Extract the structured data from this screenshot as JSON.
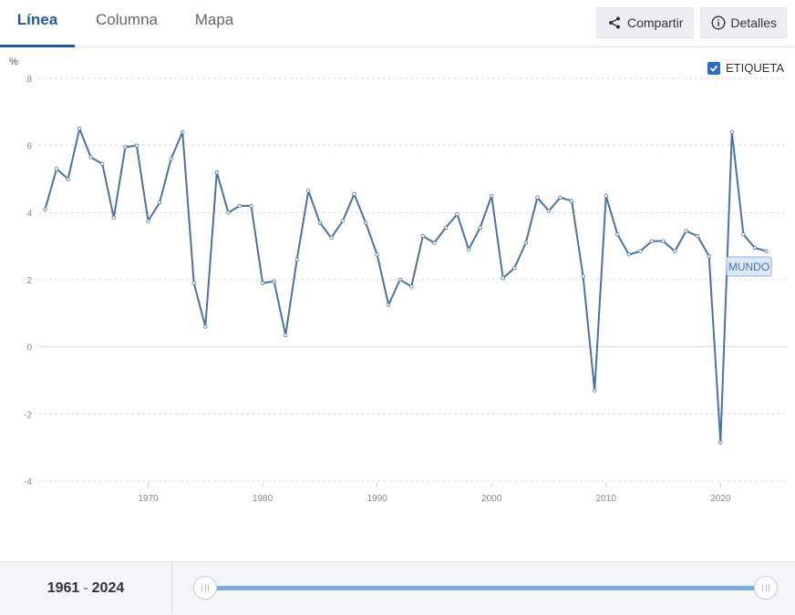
{
  "tabs": [
    {
      "label": "Línea",
      "active": true
    },
    {
      "label": "Columna",
      "active": false
    },
    {
      "label": "Mapa",
      "active": false
    }
  ],
  "actions": {
    "share_label": "Compartir",
    "details_label": "Detalles"
  },
  "legend_toggle": {
    "label": "ETIQUETA",
    "checked": true
  },
  "range": {
    "start": "1961",
    "end": "2024",
    "separator": "-"
  },
  "colors": {
    "line": "#4a72a6",
    "accent": "#1f5aa6",
    "slider": "#7aaee0"
  },
  "chart_data": {
    "type": "line",
    "ylabel": "%",
    "ylim": [
      -4,
      8
    ],
    "yticks": [
      8,
      6,
      4,
      2,
      0,
      -2,
      -4
    ],
    "xticks": [
      1970,
      1980,
      1990,
      2000,
      2010,
      2020
    ],
    "xlim": [
      1960,
      2025
    ],
    "grid": true,
    "series": [
      {
        "name": "MUNDO",
        "x": [
          1961,
          1962,
          1963,
          1964,
          1965,
          1966,
          1967,
          1968,
          1969,
          1970,
          1971,
          1972,
          1973,
          1974,
          1975,
          1976,
          1977,
          1978,
          1979,
          1980,
          1981,
          1982,
          1983,
          1984,
          1985,
          1986,
          1987,
          1988,
          1989,
          1990,
          1991,
          1992,
          1993,
          1994,
          1995,
          1996,
          1997,
          1998,
          1999,
          2000,
          2001,
          2002,
          2003,
          2004,
          2005,
          2006,
          2007,
          2008,
          2009,
          2010,
          2011,
          2012,
          2013,
          2014,
          2015,
          2016,
          2017,
          2018,
          2019,
          2020,
          2021,
          2022,
          2023,
          2024
        ],
        "values": [
          4.1,
          5.3,
          5.0,
          6.5,
          5.65,
          5.45,
          3.85,
          5.95,
          6.0,
          3.75,
          4.3,
          5.6,
          6.4,
          1.9,
          0.6,
          5.2,
          4.0,
          4.2,
          4.2,
          1.9,
          1.95,
          0.35,
          2.6,
          4.65,
          3.7,
          3.25,
          3.75,
          4.55,
          3.7,
          2.75,
          1.25,
          2.0,
          1.8,
          3.3,
          3.1,
          3.55,
          3.95,
          2.9,
          3.55,
          4.5,
          2.05,
          2.35,
          3.1,
          4.45,
          4.05,
          4.45,
          4.35,
          2.1,
          -1.3,
          4.5,
          3.35,
          2.75,
          2.85,
          3.15,
          3.15,
          2.85,
          3.45,
          3.3,
          2.7,
          -2.85,
          6.4,
          3.35,
          2.95,
          2.85
        ]
      }
    ]
  }
}
